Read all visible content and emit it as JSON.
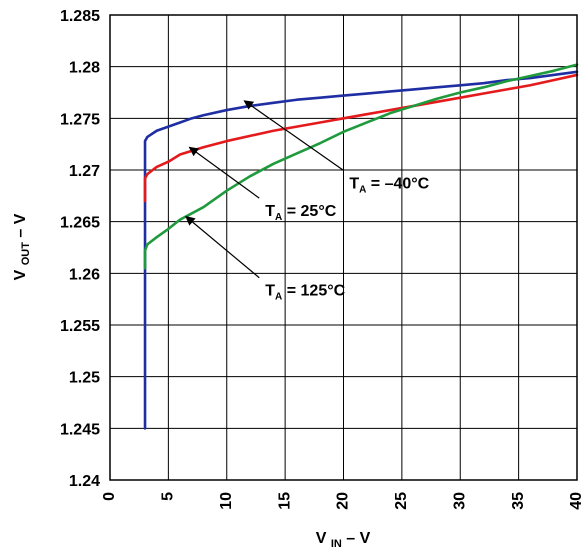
{
  "chart_data": {
    "type": "line",
    "title": "",
    "xlabel": {
      "main": "V",
      "sub": "IN",
      "suffix": " – V"
    },
    "ylabel": {
      "main": "V",
      "sub": "OUT",
      "suffix": " – V"
    },
    "xlim": [
      0,
      40
    ],
    "ylim": [
      1.24,
      1.285
    ],
    "grid": true,
    "x_ticks": [
      0,
      5,
      10,
      15,
      20,
      25,
      30,
      35,
      40
    ],
    "x_tick_labels": [
      "0",
      "5",
      "10",
      "15",
      "20",
      "25",
      "30",
      "35",
      "40"
    ],
    "y_ticks": [
      1.24,
      1.245,
      1.25,
      1.255,
      1.26,
      1.265,
      1.27,
      1.275,
      1.28,
      1.285
    ],
    "y_tick_labels": [
      "1.24",
      "1.245",
      "1.25",
      "1.255",
      "1.26",
      "1.265",
      "1.27",
      "1.275",
      "1.28",
      "1.285"
    ],
    "series": [
      {
        "key": "ta_minus_40",
        "color": "#1f2fa3",
        "x": [
          3,
          3,
          3.2,
          4,
          5,
          6,
          7,
          8,
          10,
          12,
          14,
          16,
          18,
          20,
          22,
          24,
          26,
          28,
          30,
          32,
          34,
          36,
          38,
          40
        ],
        "y": [
          1.245,
          1.2728,
          1.2732,
          1.2738,
          1.2742,
          1.2746,
          1.275,
          1.2753,
          1.2758,
          1.2762,
          1.2765,
          1.2768,
          1.277,
          1.2772,
          1.2774,
          1.2776,
          1.2778,
          1.278,
          1.2782,
          1.2784,
          1.2787,
          1.2789,
          1.2792,
          1.2795
        ]
      },
      {
        "key": "ta_25",
        "color": "#e41a1c",
        "x": [
          3,
          3,
          3.2,
          4,
          5,
          6,
          8,
          10,
          12,
          14,
          16,
          18,
          20,
          22,
          24,
          26,
          28,
          30,
          32,
          34,
          36,
          38,
          40
        ],
        "y": [
          1.267,
          1.2692,
          1.2696,
          1.2703,
          1.2708,
          1.2715,
          1.2722,
          1.2728,
          1.2733,
          1.2738,
          1.2742,
          1.2746,
          1.275,
          1.2754,
          1.2758,
          1.2762,
          1.2766,
          1.277,
          1.2774,
          1.2778,
          1.2782,
          1.2787,
          1.2792
        ]
      },
      {
        "key": "ta_125",
        "color": "#1f9a3c",
        "x": [
          3,
          3,
          3.2,
          4,
          5,
          6,
          8,
          10,
          12,
          14,
          16,
          18,
          20,
          22,
          24,
          26,
          28,
          30,
          32,
          34,
          36,
          38,
          40
        ],
        "y": [
          1.2605,
          1.2622,
          1.2628,
          1.2635,
          1.2643,
          1.2652,
          1.2664,
          1.268,
          1.2694,
          1.2706,
          1.2716,
          1.2726,
          1.2737,
          1.2746,
          1.2755,
          1.2762,
          1.2769,
          1.2775,
          1.278,
          1.2786,
          1.2791,
          1.2796,
          1.2802
        ]
      }
    ],
    "annotations": [
      {
        "key": "ann_minus_40",
        "label_prefix": "T",
        "label_sub": "A",
        "label_value": " = –40°C",
        "point_x": 11.5,
        "point_y": 1.2767,
        "text_x": 20.5,
        "text_y": 1.2692
      },
      {
        "key": "ann_25",
        "label_prefix": "T",
        "label_sub": "A",
        "label_value": " = 25°C",
        "point_x": 6.8,
        "point_y": 1.2722,
        "text_x": 13.3,
        "text_y": 1.2665
      },
      {
        "key": "ann_125",
        "label_prefix": "T",
        "label_sub": "A",
        "label_value": " = 125°C",
        "point_x": 6.5,
        "point_y": 1.2655,
        "text_x": 13.3,
        "text_y": 1.2588
      }
    ]
  }
}
